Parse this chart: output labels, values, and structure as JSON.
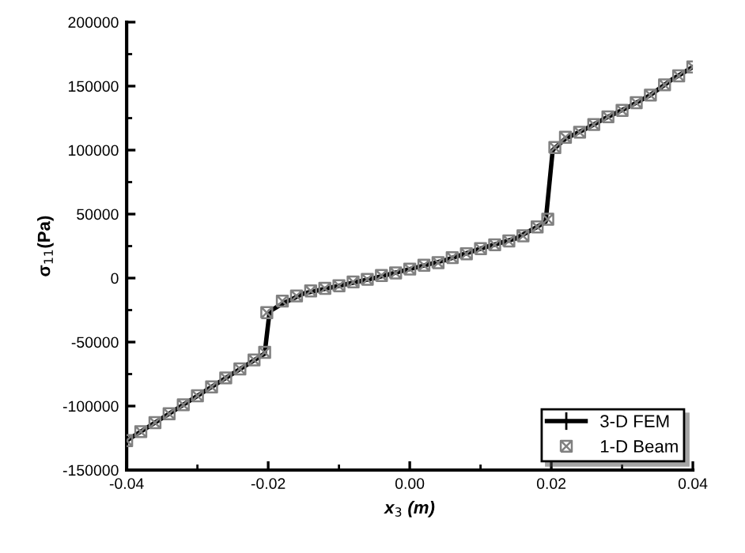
{
  "chart_data": {
    "type": "line",
    "xlabel": "x$_{3}$ (m)",
    "ylabel": "σ$_{11}$(Pa)",
    "xlim": [
      -0.04,
      0.04
    ],
    "ylim": [
      -150000,
      200000
    ],
    "xticks": [
      {
        "value": -0.04,
        "label": "-0.04"
      },
      {
        "value": -0.02,
        "label": "-0.02"
      },
      {
        "value": 0,
        "label": "0.00"
      },
      {
        "value": 0.02,
        "label": "0.02"
      },
      {
        "value": 0.04,
        "label": "0.04"
      }
    ],
    "yticks": [
      -150000,
      -100000,
      -50000,
      0,
      50000,
      100000,
      150000,
      200000
    ],
    "grid": false,
    "legend": "bottom right",
    "series": [
      {
        "name": "3-D FEM",
        "color": "#000000",
        "line_style": "solid",
        "x": [
          -0.04,
          -0.03,
          -0.0205,
          -0.0198,
          -0.018,
          -0.015,
          -0.01,
          -0.005,
          0,
          0.005,
          0.01,
          0.015,
          0.018,
          0.0192,
          0.0202,
          0.022,
          0.025,
          0.028,
          0.031,
          0.034,
          0.037,
          0.04
        ],
        "values": [
          -127000,
          -92000,
          -59000,
          -26000,
          -20000,
          -12000,
          -6000,
          0,
          7000,
          14000,
          23000,
          31000,
          40000,
          44000,
          100000,
          109000,
          117000,
          126000,
          134000,
          143000,
          155000,
          165000
        ]
      },
      {
        "name": "1-D Beam",
        "type": "scatter",
        "color": "#808080",
        "marker": "cross",
        "x": [
          -0.04,
          -0.038,
          -0.036,
          -0.034,
          -0.032,
          -0.03,
          -0.028,
          -0.026,
          -0.024,
          -0.022,
          -0.0205,
          -0.0202,
          -0.018,
          -0.016,
          -0.014,
          -0.012,
          -0.01,
          -0.008,
          -0.006,
          -0.004,
          -0.002,
          0,
          0.002,
          0.004,
          0.006,
          0.008,
          0.01,
          0.012,
          0.014,
          0.016,
          0.018,
          0.0195,
          0.0205,
          0.022,
          0.024,
          0.026,
          0.028,
          0.03,
          0.032,
          0.034,
          0.036,
          0.038,
          0.04
        ],
        "values": [
          -127000,
          -120000,
          -113000,
          -106000,
          -99000,
          -92000,
          -85000,
          -78000,
          -71000,
          -64000,
          -58000,
          -27000,
          -18000,
          -14000,
          -10000,
          -8000,
          -6000,
          -3000,
          -1000,
          2000,
          4000,
          7000,
          10000,
          12000,
          16000,
          19000,
          23000,
          26000,
          29000,
          33000,
          40000,
          46000,
          102000,
          110000,
          114000,
          120000,
          126000,
          131000,
          137000,
          143000,
          151000,
          158000,
          165000
        ]
      }
    ]
  }
}
